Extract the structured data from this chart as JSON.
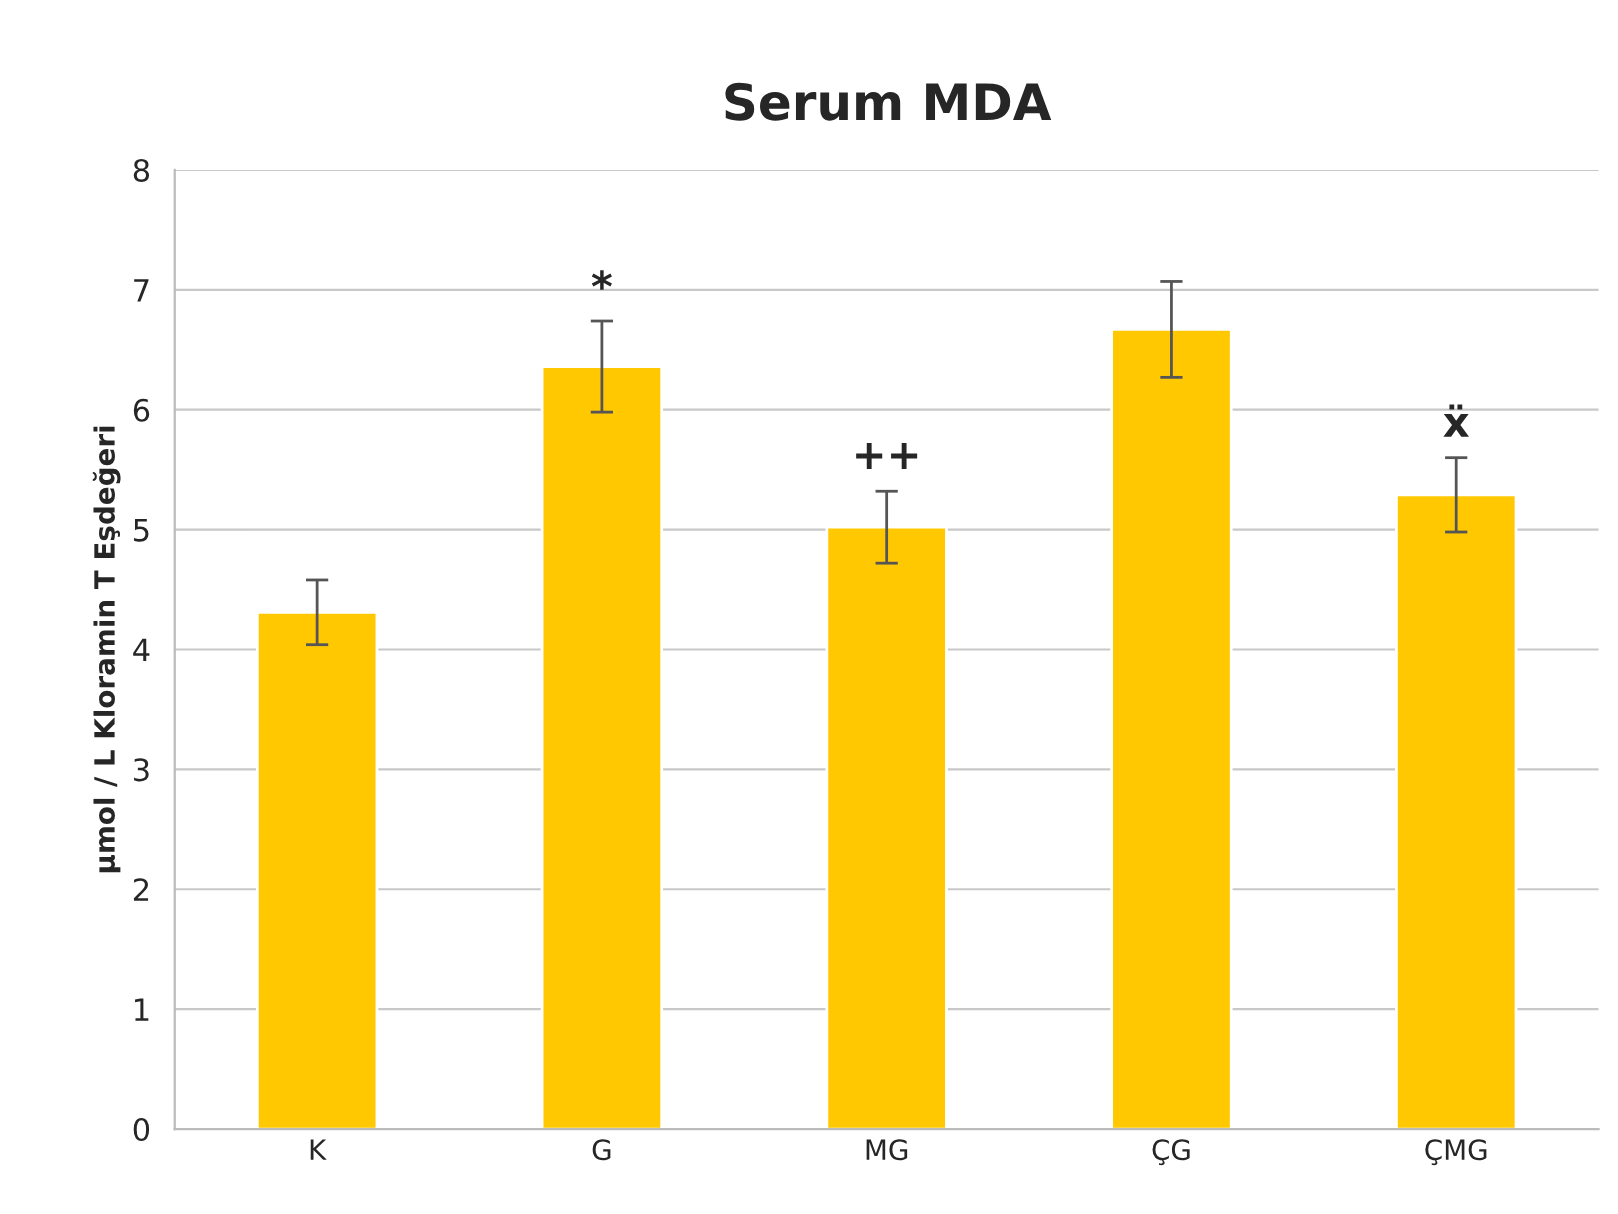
{
  "chart_data": {
    "type": "bar",
    "title": "Serum MDA",
    "ylabel": "µmol / L Kloramin T Eşdeğeri",
    "categories": [
      "K",
      "G",
      "MG",
      "ÇG",
      "ÇMG"
    ],
    "values": [
      4.31,
      6.36,
      5.02,
      6.67,
      5.29
    ],
    "errors": [
      0.27,
      0.38,
      0.3,
      0.4,
      0.31
    ],
    "color": "#ffc800",
    "ylim": [
      0,
      8
    ],
    "yticks": [
      0,
      1,
      2,
      3,
      4,
      5,
      6,
      7,
      8
    ],
    "grid": "y",
    "annotations": [
      {
        "text": "*",
        "x": "G",
        "y": 6.74
      },
      {
        "text": "++",
        "x": "MG",
        "y": 5.34
      },
      {
        "text": "ẍ",
        "x": "ÇMG",
        "y": 5.61
      }
    ]
  }
}
